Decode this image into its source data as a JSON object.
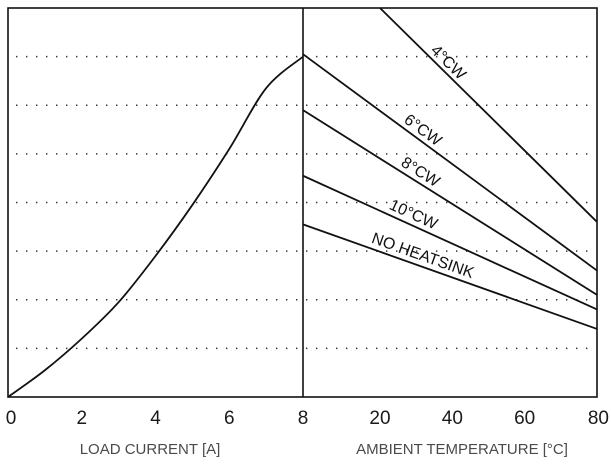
{
  "chart_data": [
    {
      "type": "line",
      "title": "",
      "xlabel": "LOAD CURRENT [A]",
      "ylabel": "",
      "xlim": [
        0,
        8
      ],
      "ylim": [
        0,
        8
      ],
      "x_ticks": [
        "0",
        "2",
        "4",
        "6",
        "8"
      ],
      "grid": true,
      "series": [
        {
          "x": [
            0,
            1,
            2,
            3,
            4,
            5,
            6,
            7,
            8
          ],
          "y": [
            0,
            0.55,
            1.2,
            1.95,
            2.9,
            3.95,
            5.1,
            6.35,
            7.0
          ]
        }
      ]
    },
    {
      "type": "line",
      "title": "",
      "xlabel": "AMBIENT TEMPERATURE [°C]",
      "ylabel": "",
      "xlim": [
        8,
        80
      ],
      "ylim": [
        0,
        8
      ],
      "x_ticks": [
        "8",
        "20",
        "40",
        "60",
        "80"
      ],
      "grid": true,
      "series": [
        {
          "name": "4°CW",
          "x": [
            20,
            80
          ],
          "y": [
            8.0,
            3.6
          ]
        },
        {
          "name": "6°CW",
          "x": [
            8,
            80
          ],
          "y": [
            7.05,
            2.6
          ]
        },
        {
          "name": "8°CW",
          "x": [
            8,
            80
          ],
          "y": [
            5.9,
            2.1
          ]
        },
        {
          "name": "10°CW",
          "x": [
            8,
            80
          ],
          "y": [
            4.55,
            1.8
          ]
        },
        {
          "name": "NO HEATSINK",
          "x": [
            8,
            80
          ],
          "y": [
            3.55,
            1.4
          ]
        }
      ]
    }
  ]
}
